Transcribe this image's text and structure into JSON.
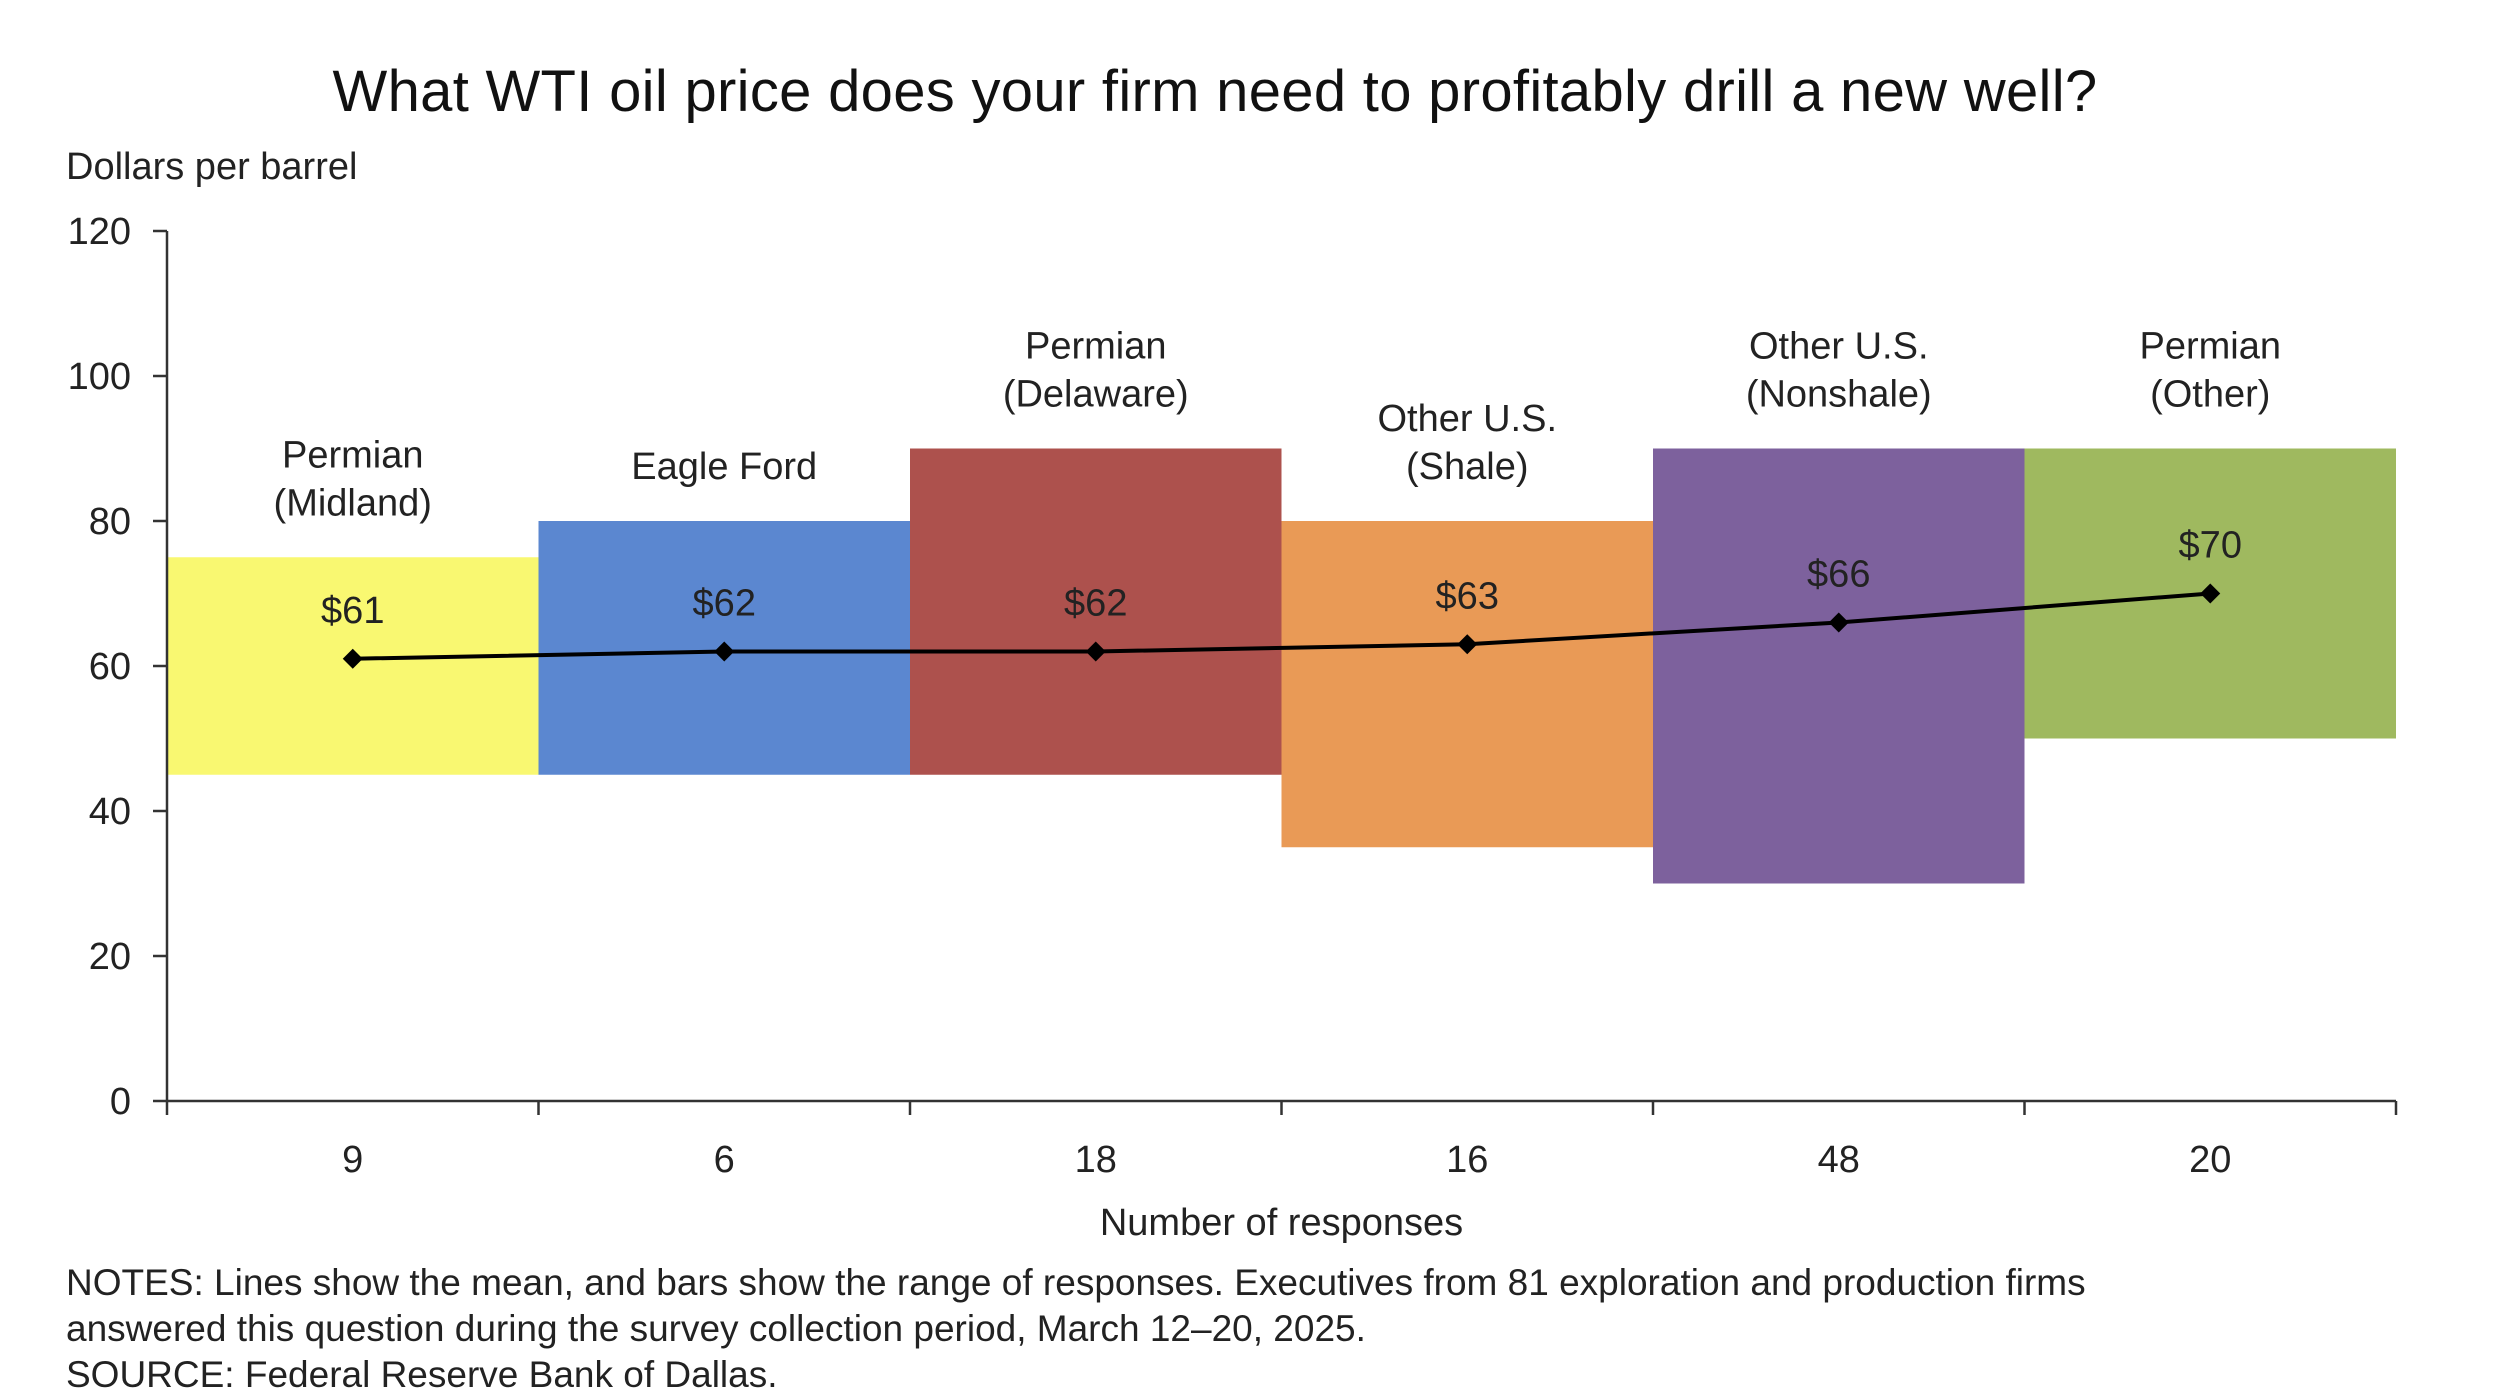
{
  "chart_data": {
    "type": "floating-bar-with-line",
    "title": "What WTI oil price does your firm need to profitably drill a new well?",
    "ylabel": "Dollars per barrel",
    "xlabel": "Number of responses",
    "ylim": [
      0,
      120
    ],
    "yticks": [
      0,
      20,
      40,
      60,
      80,
      100,
      120
    ],
    "categories": [
      {
        "name_lines": [
          "Permian",
          "(Midland)"
        ],
        "responses": "9",
        "low": 45,
        "high": 75,
        "mean": 61,
        "mean_label": "$61",
        "color": "#f9f871"
      },
      {
        "name_lines": [
          "Eagle Ford"
        ],
        "responses": "6",
        "low": 45,
        "high": 80,
        "mean": 62,
        "mean_label": "$62",
        "color": "#5b87d0"
      },
      {
        "name_lines": [
          "Permian",
          "(Delaware)"
        ],
        "responses": "18",
        "low": 45,
        "high": 90,
        "mean": 62,
        "mean_label": "$62",
        "color": "#ad514d"
      },
      {
        "name_lines": [
          "Other U.S.",
          "(Shale)"
        ],
        "responses": "16",
        "low": 35,
        "high": 80,
        "mean": 63,
        "mean_label": "$63",
        "color": "#e99a56"
      },
      {
        "name_lines": [
          "Other U.S.",
          "(Nonshale)"
        ],
        "responses": "48",
        "low": 30,
        "high": 90,
        "mean": 66,
        "mean_label": "$66",
        "color": "#7d619d"
      },
      {
        "name_lines": [
          "Permian",
          "(Other)"
        ],
        "responses": "20",
        "low": 50,
        "high": 90,
        "mean": 70,
        "mean_label": "$70",
        "color": "#9fb95f"
      }
    ],
    "mean_line_color": "#000000"
  },
  "notes": {
    "line1": "NOTES: Lines show the mean, and bars show the range of responses. Executives from 81 exploration and production firms",
    "line2": "answered this question during the survey collection period, March 12–20, 2025.",
    "source": "SOURCE: Federal Reserve Bank of Dallas."
  }
}
